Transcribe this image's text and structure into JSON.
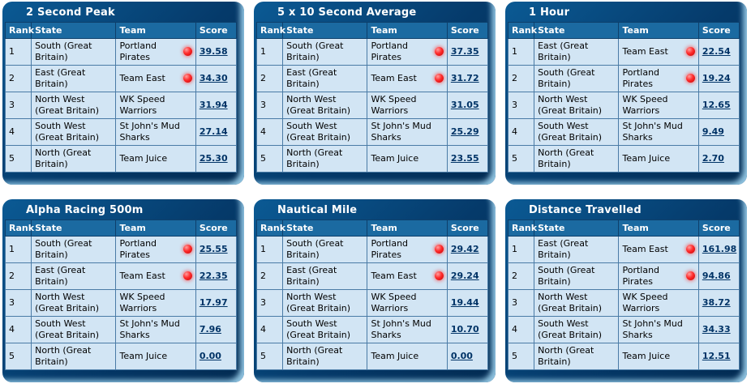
{
  "colors": {
    "panel_frame": "#053a6a",
    "panel_highlight": "#8fc3e0",
    "header_row": "#1b6aa1",
    "row_background": "#d2e5f4",
    "score_link": "#003366",
    "live_dot": "#ff2b2b"
  },
  "icons": {
    "live_indicator": "red-dot"
  },
  "columns": [
    "Rank",
    "State",
    "Team",
    "Score"
  ],
  "boards": [
    {
      "title": "2 Second Peak",
      "rows": [
        {
          "rank": "1",
          "state": "South (Great Britain)",
          "team": "Portland Pirates",
          "live": true,
          "score": "39.58"
        },
        {
          "rank": "2",
          "state": "East (Great Britain)",
          "team": "Team East",
          "live": true,
          "score": "34.30"
        },
        {
          "rank": "3",
          "state": "North West (Great Britain)",
          "team": "WK Speed Warriors",
          "live": false,
          "score": "31.94"
        },
        {
          "rank": "4",
          "state": "South West (Great Britain)",
          "team": "St John's Mud Sharks",
          "live": false,
          "score": "27.14"
        },
        {
          "rank": "5",
          "state": "North (Great Britain)",
          "team": "Team Juice",
          "live": false,
          "score": "25.30"
        }
      ]
    },
    {
      "title": "5 x 10 Second Average",
      "rows": [
        {
          "rank": "1",
          "state": "South (Great Britain)",
          "team": "Portland Pirates",
          "live": true,
          "score": "37.35"
        },
        {
          "rank": "2",
          "state": "East (Great Britain)",
          "team": "Team East",
          "live": true,
          "score": "31.72"
        },
        {
          "rank": "3",
          "state": "North West (Great Britain)",
          "team": "WK Speed Warriors",
          "live": false,
          "score": "31.05"
        },
        {
          "rank": "4",
          "state": "South West (Great Britain)",
          "team": "St John's Mud Sharks",
          "live": false,
          "score": "25.29"
        },
        {
          "rank": "5",
          "state": "North (Great Britain)",
          "team": "Team Juice",
          "live": false,
          "score": "23.55"
        }
      ]
    },
    {
      "title": "1 Hour",
      "rows": [
        {
          "rank": "1",
          "state": "East (Great Britain)",
          "team": "Team East",
          "live": true,
          "score": "22.54"
        },
        {
          "rank": "2",
          "state": "South (Great Britain)",
          "team": "Portland Pirates",
          "live": true,
          "score": "19.24"
        },
        {
          "rank": "3",
          "state": "North West (Great Britain)",
          "team": "WK Speed Warriors",
          "live": false,
          "score": "12.65"
        },
        {
          "rank": "4",
          "state": "South West (Great Britain)",
          "team": "St John's Mud Sharks",
          "live": false,
          "score": "9.49"
        },
        {
          "rank": "5",
          "state": "North (Great Britain)",
          "team": "Team Juice",
          "live": false,
          "score": "2.70"
        }
      ]
    },
    {
      "title": "Alpha Racing 500m",
      "rows": [
        {
          "rank": "1",
          "state": "South (Great Britain)",
          "team": "Portland Pirates",
          "live": true,
          "score": "25.55"
        },
        {
          "rank": "2",
          "state": "East (Great Britain)",
          "team": "Team East",
          "live": true,
          "score": "22.35"
        },
        {
          "rank": "3",
          "state": "North West (Great Britain)",
          "team": "WK Speed Warriors",
          "live": false,
          "score": "17.97"
        },
        {
          "rank": "4",
          "state": "South West (Great Britain)",
          "team": "St John's Mud Sharks",
          "live": false,
          "score": "7.96"
        },
        {
          "rank": "5",
          "state": "North (Great Britain)",
          "team": "Team Juice",
          "live": false,
          "score": "0.00"
        }
      ]
    },
    {
      "title": "Nautical Mile",
      "rows": [
        {
          "rank": "1",
          "state": "South (Great Britain)",
          "team": "Portland Pirates",
          "live": true,
          "score": "29.42"
        },
        {
          "rank": "2",
          "state": "East (Great Britain)",
          "team": "Team East",
          "live": true,
          "score": "29.24"
        },
        {
          "rank": "3",
          "state": "North West (Great Britain)",
          "team": "WK Speed Warriors",
          "live": false,
          "score": "19.44"
        },
        {
          "rank": "4",
          "state": "South West (Great Britain)",
          "team": "St John's Mud Sharks",
          "live": false,
          "score": "10.70"
        },
        {
          "rank": "5",
          "state": "North (Great Britain)",
          "team": "Team Juice",
          "live": false,
          "score": "0.00"
        }
      ]
    },
    {
      "title": "Distance Travelled",
      "rows": [
        {
          "rank": "1",
          "state": "East (Great Britain)",
          "team": "Team East",
          "live": true,
          "score": "161.98"
        },
        {
          "rank": "2",
          "state": "South (Great Britain)",
          "team": "Portland Pirates",
          "live": true,
          "score": "94.86"
        },
        {
          "rank": "3",
          "state": "North West (Great Britain)",
          "team": "WK Speed Warriors",
          "live": false,
          "score": "38.72"
        },
        {
          "rank": "4",
          "state": "South West (Great Britain)",
          "team": "St John's Mud Sharks",
          "live": false,
          "score": "34.33"
        },
        {
          "rank": "5",
          "state": "North (Great Britain)",
          "team": "Team Juice",
          "live": false,
          "score": "12.51"
        }
      ]
    }
  ]
}
